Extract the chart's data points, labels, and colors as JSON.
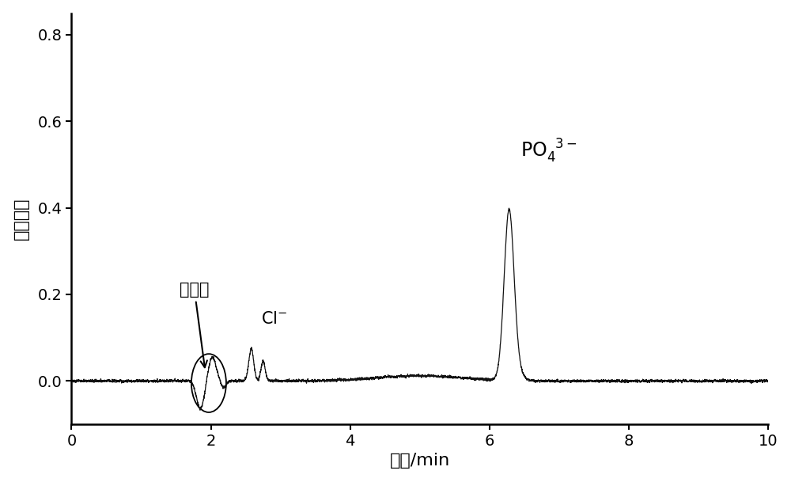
{
  "title": "",
  "xlabel": "时间/min",
  "ylabel": "信号强度",
  "xlim": [
    0,
    10
  ],
  "ylim": [
    -0.1,
    0.85
  ],
  "yticks": [
    0.0,
    0.2,
    0.4,
    0.6,
    0.8
  ],
  "xticks": [
    0,
    2,
    4,
    6,
    8,
    10
  ],
  "line_color": "#111111",
  "background_color": "#ffffff",
  "inj_text": "进样峰",
  "figsize": [
    10.0,
    6.09
  ],
  "dpi": 100
}
